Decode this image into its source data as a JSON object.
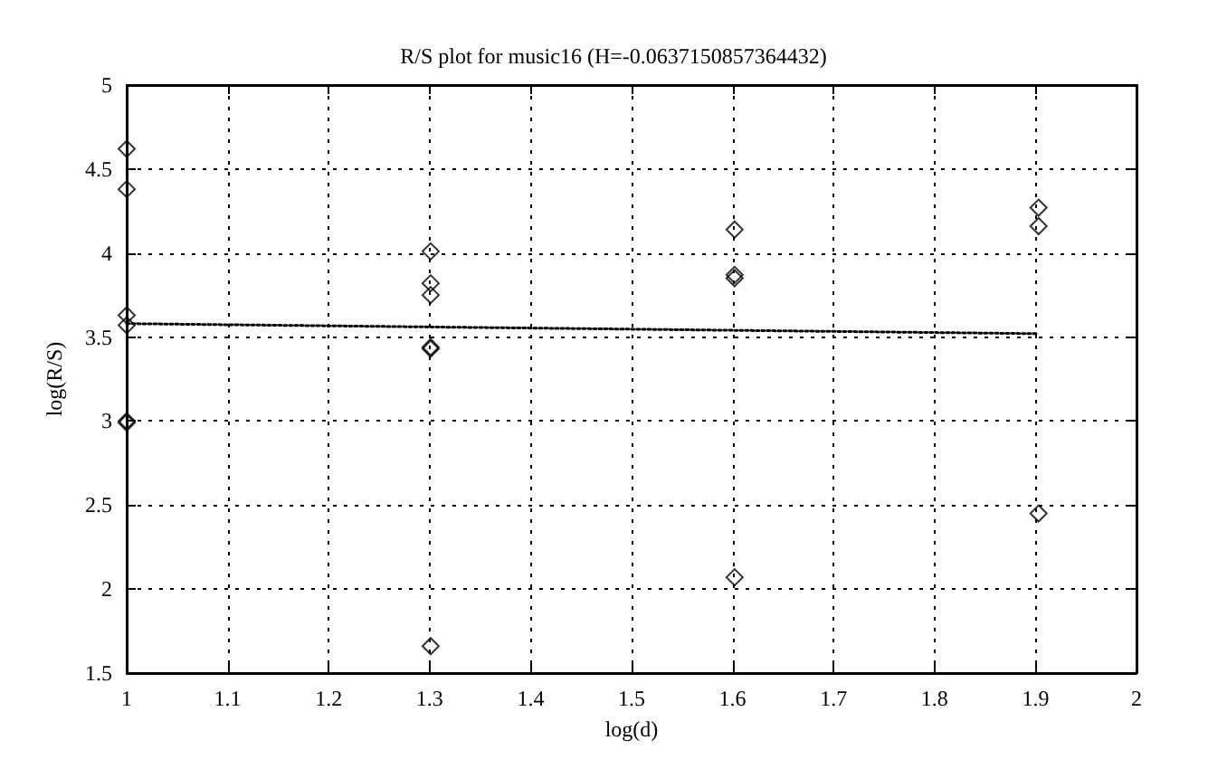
{
  "chart_data": {
    "type": "scatter",
    "title": "R/S plot for music16 (H=-0.0637150857364432)",
    "xlabel": "log(d)",
    "ylabel": "log(R/S)",
    "xlim": [
      1,
      2
    ],
    "xticks": [
      1,
      1.1,
      1.2,
      1.3,
      1.4,
      1.5,
      1.6,
      1.7,
      1.8,
      1.9,
      2
    ],
    "ylim": [
      1.5,
      5
    ],
    "yticks": [
      1.5,
      2,
      2.5,
      3,
      3.5,
      4,
      4.5,
      5
    ],
    "grid": true,
    "series": [
      {
        "color": "#000000",
        "marker": "diamond",
        "x": [
          1,
          1,
          1,
          1,
          1,
          1,
          1.301,
          1.301,
          1.301,
          1.301,
          1.301,
          1.301,
          1.602,
          1.602,
          1.602,
          1.602,
          1.903,
          1.903,
          1.903
        ],
        "values": [
          4.62,
          4.38,
          3.63,
          3.57,
          3.0,
          2.99,
          4.01,
          3.82,
          3.75,
          3.44,
          3.43,
          1.66,
          4.14,
          3.87,
          3.85,
          2.07,
          4.27,
          4.16,
          2.45
        ]
      },
      {
        "type": "line",
        "color": "#000000",
        "line_style": "dotted",
        "marker": "none",
        "x": [
          1,
          1.903
        ],
        "values": [
          3.58,
          3.52
        ]
      }
    ]
  }
}
